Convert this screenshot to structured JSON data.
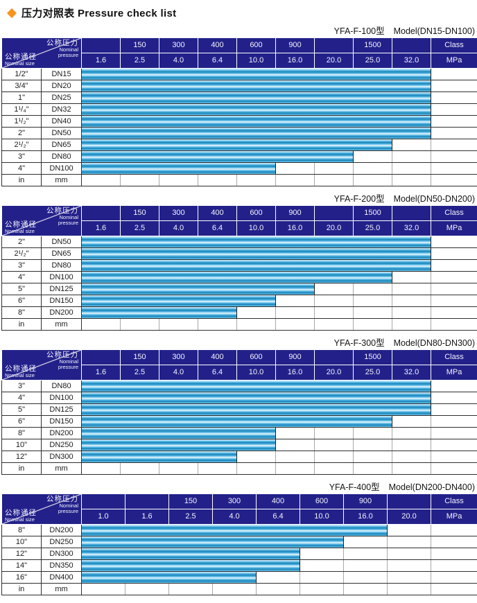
{
  "title": {
    "text": "压力对照表 Pressure check list"
  },
  "colors": {
    "diamond_orange": "#f7941d",
    "header_navy": "#232189",
    "bar_blue": "#36a9e1",
    "bar_dark_stripe": "#1a84b8",
    "bar_light_stripe": "#eef9fe"
  },
  "corner": {
    "pressure_zh": "公称压力",
    "pressure_en_line1": "Nominal",
    "pressure_en_line2": "pressure",
    "size_zh": "公称通径",
    "size_en": "Nominal size"
  },
  "tables": [
    {
      "model": "YFA-F-100型",
      "range": "Model(DN15-DN100)",
      "class_labels": [
        "",
        "150",
        "300",
        "400",
        "600",
        "900",
        "",
        "1500",
        "",
        "Class"
      ],
      "mpa_labels": [
        "1.6",
        "2.5",
        "4.0",
        "6.4",
        "10.0",
        "16.0",
        "20.0",
        "25.0",
        "32.0",
        "MPa"
      ],
      "rows": [
        {
          "size": "1/2\"",
          "dn": "DN15",
          "bar_cols": 9,
          "max_mpa": "32.0"
        },
        {
          "size": "3/4\"",
          "dn": "DN20",
          "bar_cols": 9,
          "max_mpa": "32.0"
        },
        {
          "size": "1\"",
          "dn": "DN25",
          "bar_cols": 9,
          "max_mpa": "32.0"
        },
        {
          "size": "1¹/₄\"",
          "dn": "DN32",
          "bar_cols": 9,
          "max_mpa": "32.0"
        },
        {
          "size": "1¹/₂\"",
          "dn": "DN40",
          "bar_cols": 9,
          "max_mpa": "32.0"
        },
        {
          "size": "2\"",
          "dn": "DN50",
          "bar_cols": 9,
          "max_mpa": "32.0"
        },
        {
          "size": "2¹/₂\"",
          "dn": "DN65",
          "bar_cols": 8,
          "max_mpa": "25.0"
        },
        {
          "size": "3\"",
          "dn": "DN80",
          "bar_cols": 7,
          "max_mpa": "20.0"
        },
        {
          "size": "4\"",
          "dn": "DN100",
          "bar_cols": 5,
          "max_mpa": "10.0"
        },
        {
          "size": "in",
          "dn": "mm",
          "bar_cols": 0,
          "max_mpa": ""
        }
      ]
    },
    {
      "model": "YFA-F-200型",
      "range": "Model(DN50-DN200)",
      "class_labels": [
        "",
        "150",
        "300",
        "400",
        "600",
        "900",
        "",
        "1500",
        "",
        "Class"
      ],
      "mpa_labels": [
        "1.6",
        "2.5",
        "4.0",
        "6.4",
        "10.0",
        "16.0",
        "20.0",
        "25.0",
        "32.0",
        "MPa"
      ],
      "rows": [
        {
          "size": "2\"",
          "dn": "DN50",
          "bar_cols": 9,
          "max_mpa": "32.0"
        },
        {
          "size": "2¹/₂\"",
          "dn": "DN65",
          "bar_cols": 9,
          "max_mpa": "32.0"
        },
        {
          "size": "3\"",
          "dn": "DN80",
          "bar_cols": 9,
          "max_mpa": "32.0"
        },
        {
          "size": "4\"",
          "dn": "DN100",
          "bar_cols": 8,
          "max_mpa": "25.0"
        },
        {
          "size": "5\"",
          "dn": "DN125",
          "bar_cols": 6,
          "max_mpa": "16.0"
        },
        {
          "size": "6\"",
          "dn": "DN150",
          "bar_cols": 5,
          "max_mpa": "10.0"
        },
        {
          "size": "8\"",
          "dn": "DN200",
          "bar_cols": 4,
          "max_mpa": "6.4"
        },
        {
          "size": "in",
          "dn": "mm",
          "bar_cols": 0,
          "max_mpa": ""
        }
      ]
    },
    {
      "model": "YFA-F-300型",
      "range": "Model(DN80-DN300)",
      "class_labels": [
        "",
        "150",
        "300",
        "400",
        "600",
        "900",
        "",
        "1500",
        "",
        "Class"
      ],
      "mpa_labels": [
        "1.6",
        "2.5",
        "4.0",
        "6.4",
        "10.0",
        "16.0",
        "20.0",
        "25.0",
        "32.0",
        "MPa"
      ],
      "rows": [
        {
          "size": "3\"",
          "dn": "DN80",
          "bar_cols": 9,
          "max_mpa": "32.0"
        },
        {
          "size": "4\"",
          "dn": "DN100",
          "bar_cols": 9,
          "max_mpa": "32.0"
        },
        {
          "size": "5\"",
          "dn": "DN125",
          "bar_cols": 9,
          "max_mpa": "32.0"
        },
        {
          "size": "6\"",
          "dn": "DN150",
          "bar_cols": 8,
          "max_mpa": "25.0"
        },
        {
          "size": "8\"",
          "dn": "DN200",
          "bar_cols": 5,
          "max_mpa": "10.0"
        },
        {
          "size": "10\"",
          "dn": "DN250",
          "bar_cols": 5,
          "max_mpa": "10.0"
        },
        {
          "size": "12\"",
          "dn": "DN300",
          "bar_cols": 4,
          "max_mpa": "6.4"
        },
        {
          "size": "in",
          "dn": "mm",
          "bar_cols": 0,
          "max_mpa": ""
        }
      ]
    },
    {
      "model": "YFA-F-400型",
      "range": "Model(DN200-DN400)",
      "class_labels": [
        "",
        "",
        "150",
        "300",
        "400",
        "600",
        "900",
        "",
        "Class"
      ],
      "mpa_labels": [
        "1.0",
        "1.6",
        "2.5",
        "4.0",
        "6.4",
        "10.0",
        "16.0",
        "20.0",
        "MPa"
      ],
      "rows": [
        {
          "size": "8\"",
          "dn": "DN200",
          "bar_cols": 7,
          "max_mpa": "16.0"
        },
        {
          "size": "10\"",
          "dn": "DN250",
          "bar_cols": 6,
          "max_mpa": "10.0"
        },
        {
          "size": "12\"",
          "dn": "DN300",
          "bar_cols": 5,
          "max_mpa": "6.4"
        },
        {
          "size": "14\"",
          "dn": "DN350",
          "bar_cols": 5,
          "max_mpa": "6.4"
        },
        {
          "size": "16\"",
          "dn": "DN400",
          "bar_cols": 4,
          "max_mpa": "4.0"
        },
        {
          "size": "in",
          "dn": "mm",
          "bar_cols": 0,
          "max_mpa": ""
        }
      ]
    }
  ]
}
